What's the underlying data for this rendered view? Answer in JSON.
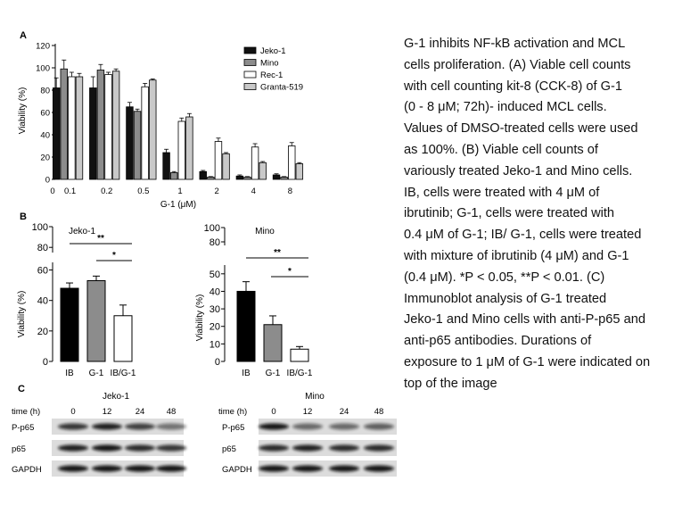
{
  "panel_a": {
    "label": "A",
    "ylabel": "Viability (%)",
    "xlabel": "G-1 (μM)",
    "zero_label": "0",
    "legend": [
      "Jeko-1",
      "Mino",
      "Rec-1",
      "Granta-519"
    ],
    "y_ticks": [
      "0",
      "20",
      "40",
      "60",
      "80",
      "100",
      "120"
    ],
    "colors": [
      "#111111",
      "#8c8c8c",
      "#ffffff",
      "#c9c9c9"
    ]
  },
  "panel_b": {
    "label": "B",
    "ylabel": "Viability (%)",
    "categories": [
      "IB",
      "G-1",
      "IB/G-1"
    ],
    "left": {
      "title": "Jeko-1",
      "upper_ticks": [
        "80",
        "100"
      ],
      "lower_ticks": [
        "0",
        "20",
        "40",
        "60"
      ]
    },
    "right": {
      "title": "Mino",
      "upper_ticks": [
        "80",
        "100"
      ],
      "lower_ticks": [
        "0",
        "10",
        "20",
        "30",
        "40",
        "50"
      ]
    },
    "sig_star2": "**",
    "sig_star1": "*"
  },
  "panel_c": {
    "label": "C",
    "left_title": "Jeko-1",
    "right_title": "Mino",
    "time_label": "time (h)",
    "times": [
      "0",
      "12",
      "24",
      "48"
    ],
    "rows": [
      "P-p65",
      "p65",
      "GAPDH"
    ]
  },
  "chart_data": [
    {
      "type": "bar",
      "title": "",
      "xlabel": "G-1 (μM)",
      "ylabel": "Viability (%)",
      "ylim": [
        0,
        120
      ],
      "legend_position": "top-right",
      "categories": [
        "0.1",
        "0.2",
        "0.5",
        "1",
        "2",
        "4",
        "8"
      ],
      "series": [
        {
          "name": "Jeko-1",
          "values": [
            82,
            82,
            65,
            24,
            7,
            3,
            4
          ],
          "errors": [
            9,
            10,
            4,
            3,
            1,
            1,
            1
          ]
        },
        {
          "name": "Mino",
          "values": [
            99,
            98,
            61,
            6,
            2,
            2,
            2
          ],
          "errors": [
            8,
            5,
            2,
            1,
            0.5,
            0.5,
            0.5
          ]
        },
        {
          "name": "Rec-1",
          "values": [
            92,
            94,
            83,
            52,
            34,
            29,
            30
          ],
          "errors": [
            4,
            2,
            3,
            3,
            3,
            3,
            3
          ]
        },
        {
          "name": "Granta-519",
          "values": [
            92,
            97,
            89,
            56,
            23,
            15,
            14
          ],
          "errors": [
            3,
            2,
            1,
            3,
            1,
            1,
            1
          ]
        }
      ]
    },
    {
      "type": "bar",
      "title": "Jeko-1",
      "ylabel": "Viability (%)",
      "ylim": [
        0,
        100
      ],
      "axis_break": [
        65,
        75
      ],
      "categories": [
        "IB",
        "G-1",
        "IB/G-1"
      ],
      "values": [
        48,
        53,
        30
      ],
      "errors": [
        3.5,
        3,
        7
      ],
      "significance": [
        {
          "from": "IB",
          "to": "IB/G-1",
          "label": "**"
        },
        {
          "from": "G-1",
          "to": "IB/G-1",
          "label": "*"
        }
      ]
    },
    {
      "type": "bar",
      "title": "Mino",
      "ylabel": "Viability (%)",
      "ylim": [
        0,
        100
      ],
      "axis_break": [
        55,
        75
      ],
      "categories": [
        "IB",
        "G-1",
        "IB/G-1"
      ],
      "values": [
        40,
        21,
        7
      ],
      "errors": [
        5.5,
        5,
        1.5
      ],
      "significance": [
        {
          "from": "IB",
          "to": "IB/G-1",
          "label": "**"
        },
        {
          "from": "G-1",
          "to": "IB/G-1",
          "label": "*"
        }
      ]
    }
  ],
  "caption_lines": [
    "G-1 inhibits NF-kB activation and MCL",
    "cells proliferation. (A) Viable cell counts",
    "with cell counting kit-8 (CCK-8) of G-1",
    "(0 - 8 μM; 72h)- induced MCL cells.",
    "Values of DMSO-treated cells were used",
    "as 100%. (B) Viable cell counts of",
    "variously treated Jeko-1 and Mino cells.",
    "IB, cells were treated with 4 μM of",
    "ibrutinib; G-1, cells were treated with",
    "0.4 μM of G-1; IB/ G-1, cells were treated",
    "with mixture of ibrutinib (4 μM) and G-1",
    "(0.4 μM). *P < 0.05, **P < 0.01. (C)",
    "Immunoblot analysis of G-1 treated",
    "Jeko-1 and Mino cells with anti-P-p65 and",
    "anti-p65 antibodies. Durations of",
    "exposure to 1 μM of G-1 were indicated on",
    "top of the image"
  ]
}
